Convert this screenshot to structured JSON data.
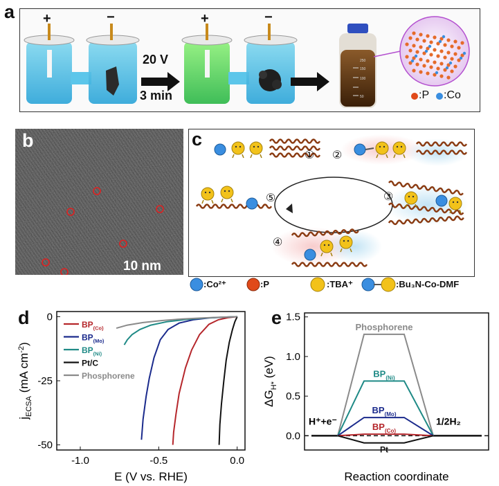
{
  "panel_a": {
    "label": "a",
    "plus": "+",
    "minus": "−",
    "voltage": "20 V",
    "time": "3 min",
    "legend_p": ":P",
    "legend_co": ":Co",
    "bottle_marks": [
      "250",
      "150",
      "100",
      "50"
    ]
  },
  "panel_b": {
    "label": "b",
    "scale_bar": "10 nm"
  },
  "panel_c": {
    "label": "c",
    "steps": [
      "①",
      "②",
      "③",
      "④",
      "⑤"
    ],
    "legend": [
      ":Co²⁺",
      ":P",
      ":TBA⁺",
      ":Bu₃N-Co-DMF"
    ]
  },
  "colors": {
    "co": "#3a8ee0",
    "p": "#e04a1a",
    "tba": "#f2c21a",
    "chain": "#8a3b12"
  },
  "chart_data": [
    {
      "panel": "d",
      "type": "line",
      "xlabel": "E (V vs. RHE)",
      "ylabel": "j",
      "ylabel_sub": "ECSA",
      "ylabel_unit": " (mA cm",
      "ylabel_sup": "-2",
      "ylabel_end": ")",
      "xlim": [
        -1.15,
        0.05
      ],
      "ylim": [
        -52,
        2
      ],
      "xticks": [
        "-1.0",
        "-0.5",
        "0.0"
      ],
      "xtick_values": [
        -1.0,
        -0.5,
        0.0
      ],
      "yticks": [
        "0",
        "-25",
        "-50"
      ],
      "ytick_values": [
        0,
        -25,
        -50
      ],
      "legend": [
        {
          "base": "BP",
          "sub": "(Co)",
          "color": "#b5262b"
        },
        {
          "base": "BP",
          "sub": "(Mo)",
          "color": "#1a2a8c"
        },
        {
          "base": "BP",
          "sub": "(Ni)",
          "color": "#1f8a86"
        },
        {
          "base": "Pt/C",
          "sub": "",
          "color": "#111111"
        },
        {
          "base": "Phosphorene",
          "sub": "",
          "color": "#8a8a8a"
        }
      ],
      "series": [
        {
          "name": "BP(Co)",
          "color": "#b5262b",
          "x": [
            -0.41,
            -0.405,
            -0.39,
            -0.37,
            -0.33,
            -0.29,
            -0.24,
            -0.18,
            -0.12,
            -0.06,
            0.0
          ],
          "y": [
            -50,
            -45,
            -38,
            -30,
            -20,
            -13,
            -7,
            -3,
            -1.2,
            -0.4,
            0
          ]
        },
        {
          "name": "BP(Mo)",
          "color": "#1a2a8c",
          "x": [
            -0.61,
            -0.6,
            -0.58,
            -0.56,
            -0.53,
            -0.49,
            -0.44,
            -0.37,
            -0.28,
            -0.18,
            -0.08,
            0.0
          ],
          "y": [
            -48,
            -40,
            -31,
            -24,
            -16,
            -9,
            -5,
            -2.5,
            -1.2,
            -0.5,
            -0.2,
            0
          ]
        },
        {
          "name": "BP(Ni)",
          "color": "#1f8a86",
          "x": [
            -0.72,
            -0.7,
            -0.67,
            -0.62,
            -0.55,
            -0.45,
            -0.33,
            -0.2,
            -0.08,
            0.0
          ],
          "y": [
            -11,
            -9,
            -7,
            -5,
            -3.3,
            -2,
            -1.1,
            -0.5,
            -0.2,
            0
          ]
        },
        {
          "name": "Pt/C",
          "color": "#111111",
          "x": [
            -0.115,
            -0.11,
            -0.1,
            -0.085,
            -0.07,
            -0.05,
            -0.03,
            -0.015,
            0.0
          ],
          "y": [
            -50,
            -42,
            -34,
            -25,
            -17,
            -10,
            -5,
            -2,
            0
          ]
        },
        {
          "name": "Phosphorene",
          "color": "#8a8a8a",
          "x": [
            -0.77,
            -0.7,
            -0.6,
            -0.48,
            -0.35,
            -0.22,
            -0.1,
            0.0
          ],
          "y": [
            -4.5,
            -3.3,
            -2.3,
            -1.5,
            -0.9,
            -0.5,
            -0.2,
            0
          ]
        }
      ]
    },
    {
      "panel": "e",
      "type": "line",
      "xlabel": "Reaction coordinate",
      "ylabel": "ΔG",
      "ylabel_sub": "H*",
      "ylabel_unit": " (eV)",
      "ylim": [
        -0.18,
        1.55
      ],
      "yticks": [
        "0.0",
        "0.5",
        "1.0",
        "1.5"
      ],
      "ytick_values": [
        0.0,
        0.5,
        1.0,
        1.5
      ],
      "left_label": "H⁺+e⁻",
      "right_label": "1/2H₂",
      "levels": [
        {
          "name": "Phosphorene",
          "label_base": "Phosphorene",
          "label_sub": "",
          "value": 1.28,
          "color": "#8a8a8a"
        },
        {
          "name": "BP(Ni)",
          "label_base": "BP",
          "label_sub": "(Ni)",
          "value": 0.69,
          "color": "#1f8a86"
        },
        {
          "name": "BP(Mo)",
          "label_base": "BP",
          "label_sub": "(Mo)",
          "value": 0.23,
          "color": "#1a2a8c"
        },
        {
          "name": "BP(Co)",
          "label_base": "BP",
          "label_sub": "(Co)",
          "value": 0.02,
          "color": "#b5262b"
        },
        {
          "name": "Pt",
          "label_base": "Pt",
          "label_sub": "",
          "value": -0.09,
          "color": "#111111"
        }
      ]
    }
  ]
}
